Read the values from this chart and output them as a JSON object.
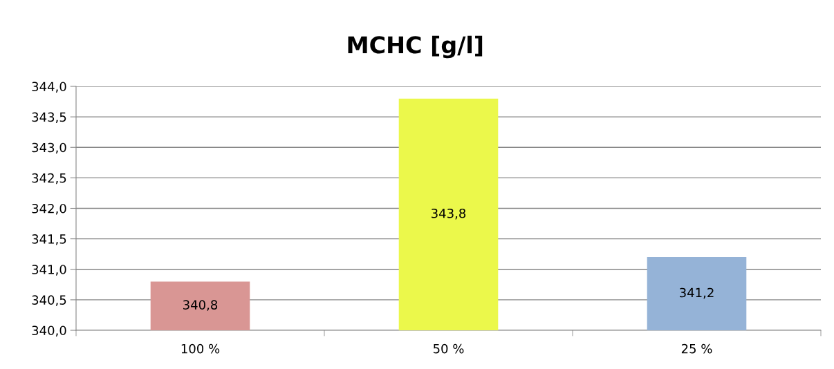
{
  "chart_data": {
    "type": "bar",
    "title": "MCHC [g/l]",
    "categories": [
      "100 %",
      "50 %",
      "25 %"
    ],
    "values": [
      340.8,
      343.8,
      341.2
    ],
    "value_labels": [
      "340,8",
      "343,8",
      "341,2"
    ],
    "colors": [
      "#d99694",
      "#ebf84b",
      "#95b3d7"
    ],
    "ylim": [
      340,
      344
    ],
    "yticks": [
      {
        "value": 340,
        "label": "340,0"
      },
      {
        "value": 340.5,
        "label": "340,5"
      },
      {
        "value": 341,
        "label": "341,0"
      },
      {
        "value": 341.5,
        "label": "341,5"
      },
      {
        "value": 342,
        "label": "342,0"
      },
      {
        "value": 342.5,
        "label": "342,5"
      },
      {
        "value": 343,
        "label": "343,0"
      },
      {
        "value": 343.5,
        "label": "343,5"
      },
      {
        "value": 344,
        "label": "344,0"
      }
    ],
    "grid": "y"
  }
}
